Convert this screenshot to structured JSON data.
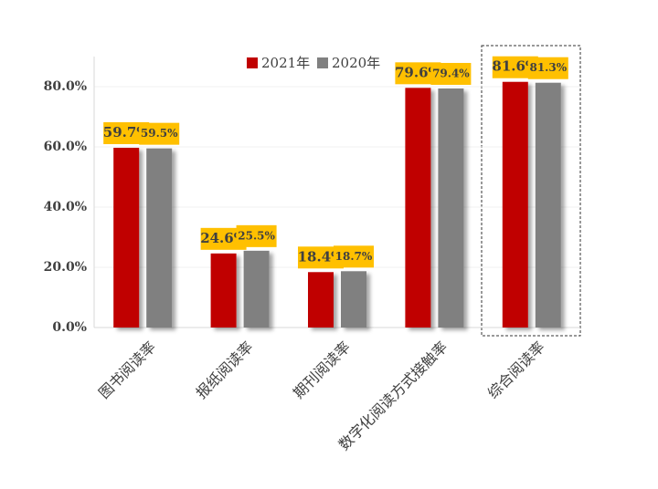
{
  "chart_data": {
    "type": "bar",
    "categories": [
      "图书阅读率",
      "报纸阅读率",
      "期刊阅读率",
      "数字化阅读方式接触率",
      "综合阅读率"
    ],
    "series": [
      {
        "name": "2021年",
        "color": "#c00000",
        "values": [
          59.7,
          24.6,
          18.4,
          79.6,
          81.6
        ],
        "value_labels": [
          "59.7%",
          "24.6%",
          "18.4%",
          "79.6%",
          "81.6%"
        ]
      },
      {
        "name": "2020年",
        "color": "#808080",
        "values": [
          59.5,
          25.5,
          18.7,
          79.4,
          81.3
        ],
        "value_labels": [
          "59.5%",
          "25.5%",
          "18.7%",
          "79.4%",
          "81.3%"
        ]
      }
    ],
    "ylim": [
      0,
      90
    ],
    "yticks": [
      {
        "value": 0,
        "label": "0.0%"
      },
      {
        "value": 20,
        "label": "20.0%"
      },
      {
        "value": 40,
        "label": "40.0%"
      },
      {
        "value": 60,
        "label": "60.0%"
      },
      {
        "value": 80,
        "label": "80.0%"
      }
    ],
    "grid": true,
    "legend": "top",
    "label_color": "#ffc000"
  }
}
